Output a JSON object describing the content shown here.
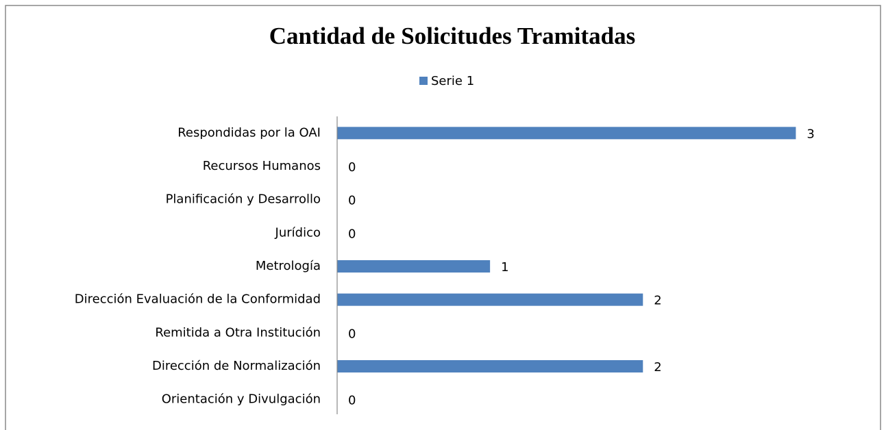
{
  "chart_data": {
    "type": "barh",
    "title": "Cantidad de Solicitudes Tramitadas",
    "categories": [
      "Respondidas por la OAI",
      "Recursos Humanos",
      "Planificación y Desarrollo",
      "Jurídico",
      "Metrología",
      "Dirección Evaluación de la Conformidad",
      "Remitida a Otra Institución",
      "Dirección de Normalización",
      "Orientación y Divulgación"
    ],
    "series": [
      {
        "name": "Serie 1",
        "color": "#4f81bd",
        "values": [
          3,
          0,
          0,
          0,
          1,
          2,
          0,
          2,
          0
        ]
      }
    ],
    "xlim": [
      0,
      3.5
    ],
    "legend": "top"
  }
}
